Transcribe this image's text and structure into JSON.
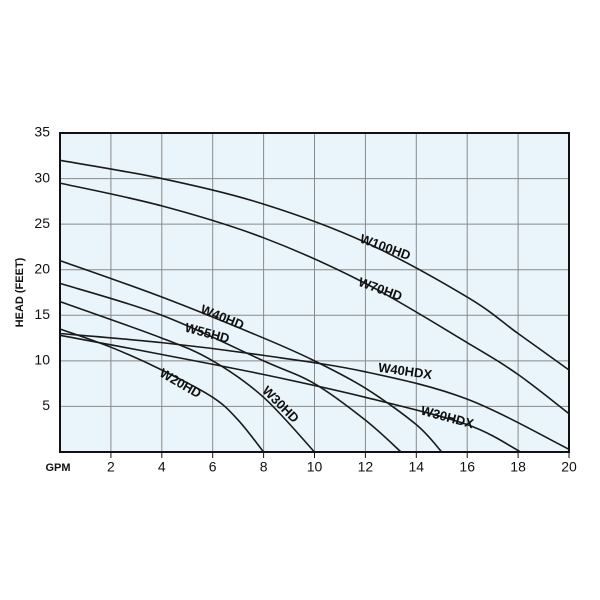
{
  "chart_data": {
    "type": "line",
    "xlabel": "GPM",
    "ylabel": "HEAD (FEET)",
    "xlim": [
      0,
      20
    ],
    "ylim": [
      0,
      35
    ],
    "xticks": [
      2,
      4,
      6,
      8,
      10,
      12,
      14,
      16,
      18,
      20
    ],
    "yticks": [
      5,
      10,
      15,
      20,
      25,
      30,
      35
    ],
    "grid": true,
    "background": "#e9f5fa",
    "line_color": "#1a1a1a",
    "series": [
      {
        "name": "W100HD",
        "x": [
          0,
          4,
          8,
          12,
          16,
          18,
          20
        ],
        "values": [
          32,
          30,
          27.2,
          23,
          17,
          13,
          9
        ]
      },
      {
        "name": "W70HD",
        "x": [
          0,
          4,
          8,
          12,
          16,
          18,
          20
        ],
        "values": [
          29.5,
          27,
          23.5,
          18.5,
          12,
          8.5,
          4.2
        ]
      },
      {
        "name": "W40HD",
        "x": [
          0,
          4,
          8,
          10,
          12,
          14,
          15
        ],
        "values": [
          21,
          17,
          12.5,
          10,
          7,
          3,
          0
        ]
      },
      {
        "name": "W55HD",
        "x": [
          0,
          4,
          8,
          10,
          12,
          13.4
        ],
        "values": [
          18.5,
          15,
          10,
          7.5,
          3.5,
          0
        ]
      },
      {
        "name": "W40HDX",
        "x": [
          0,
          4,
          8,
          12,
          16,
          20
        ],
        "values": [
          13,
          12,
          10.6,
          8.8,
          5.8,
          0.3
        ]
      },
      {
        "name": "W30HDX",
        "x": [
          0,
          4,
          8,
          12,
          16,
          18.1
        ],
        "values": [
          12.8,
          10.7,
          8.5,
          6,
          3,
          0
        ]
      },
      {
        "name": "W20HD",
        "x": [
          0,
          2,
          4,
          6,
          7,
          8
        ],
        "values": [
          13.5,
          11.5,
          9,
          6,
          3.5,
          0
        ]
      },
      {
        "name": "W30HD",
        "x": [
          0,
          4,
          6,
          8,
          10
        ],
        "values": [
          16.5,
          12.5,
          10,
          6,
          0
        ]
      }
    ]
  }
}
